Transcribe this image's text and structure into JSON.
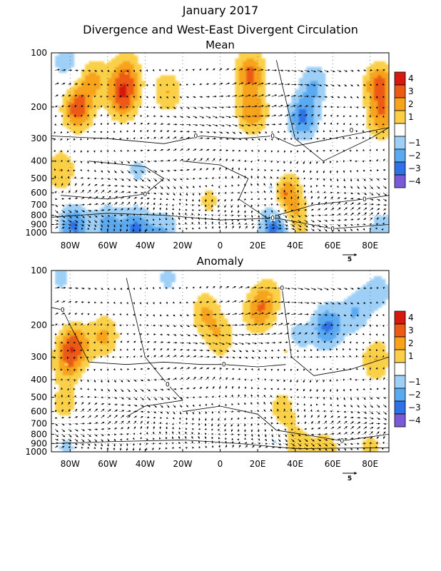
{
  "figure": {
    "title": "January 2017",
    "subtitle": "Divergence and West-East Divergent Circulation"
  },
  "colors": {
    "levels": [
      {
        "label": "4",
        "color": "#d7190f"
      },
      {
        "label": "3",
        "color": "#ec5a14"
      },
      {
        "label": "2",
        "color": "#f7a31c"
      },
      {
        "label": "1",
        "color": "#fbd048"
      },
      {
        "label": "",
        "color": "#ffffff"
      },
      {
        "label": "−1",
        "color": "#9ed0f7"
      },
      {
        "label": "−2",
        "color": "#5aaaf2"
      },
      {
        "label": "−3",
        "color": "#2f72e8"
      },
      {
        "label": "−4",
        "color": "#7a5ad8"
      }
    ]
  },
  "chart_data": [
    {
      "type": "heatmap",
      "panel": "mean",
      "title": "Mean",
      "x_range": [
        -90,
        90
      ],
      "x_ticks": [
        {
          "value": -80,
          "label": "80W"
        },
        {
          "value": -60,
          "label": "60W"
        },
        {
          "value": -40,
          "label": "40W"
        },
        {
          "value": -20,
          "label": "20W"
        },
        {
          "value": 0,
          "label": "0"
        },
        {
          "value": 20,
          "label": "20E"
        },
        {
          "value": 40,
          "label": "40E"
        },
        {
          "value": 60,
          "label": "60E"
        },
        {
          "value": 80,
          "label": "80E"
        }
      ],
      "y_range_hpa": [
        1000,
        100
      ],
      "y_ticks": [
        100,
        200,
        300,
        400,
        500,
        600,
        700,
        800,
        900,
        1000
      ],
      "legend_ticks": [
        "4",
        "3",
        "2",
        "1",
        "−1",
        "−2",
        "−3",
        "−4"
      ],
      "reference_vector": "5",
      "contour_labels": [
        {
          "text": "0",
          "lon": -13,
          "p": 290
        },
        {
          "text": "0",
          "lon": -40,
          "p": 610
        },
        {
          "text": "0",
          "lon": 28,
          "p": 290
        },
        {
          "text": "0",
          "lon": 70,
          "p": 270
        },
        {
          "text": "0",
          "lon": 28,
          "p": 830
        },
        {
          "text": "0",
          "lon": 77,
          "p": 650
        },
        {
          "text": "0",
          "lon": 60,
          "p": 950
        }
      ],
      "divergence_centers": [
        {
          "lon": -76,
          "p": 205,
          "value": 3.6
        },
        {
          "lon": -52,
          "p": 180,
          "value": 3.4
        },
        {
          "lon": -68,
          "p": 140,
          "value": 2.2
        },
        {
          "lon": -50,
          "p": 130,
          "value": 2.5
        },
        {
          "lon": -85,
          "p": 450,
          "value": 2.0
        },
        {
          "lon": -28,
          "p": 165,
          "value": 2.0
        },
        {
          "lon": 16,
          "p": 130,
          "value": 3.2
        },
        {
          "lon": 17,
          "p": 215,
          "value": 2.8
        },
        {
          "lon": 85,
          "p": 150,
          "value": 3.4
        },
        {
          "lon": 86,
          "p": 230,
          "value": 2.6
        },
        {
          "lon": 35,
          "p": 610,
          "value": 3.2
        },
        {
          "lon": 40,
          "p": 880,
          "value": 2.0
        },
        {
          "lon": -6,
          "p": 660,
          "value": 1.2
        },
        {
          "lon": 44,
          "p": 230,
          "value": -3.2
        },
        {
          "lon": 50,
          "p": 150,
          "value": -2.0
        },
        {
          "lon": -82,
          "p": 110,
          "value": -1.6
        },
        {
          "lon": -78,
          "p": 920,
          "value": -3.2
        },
        {
          "lon": -60,
          "p": 920,
          "value": -2.4
        },
        {
          "lon": -45,
          "p": 980,
          "value": -3.4
        },
        {
          "lon": -30,
          "p": 990,
          "value": -2.0
        },
        {
          "lon": 30,
          "p": 930,
          "value": -3.8
        },
        {
          "lon": -44,
          "p": 450,
          "value": -1.2
        },
        {
          "lon": 86,
          "p": 960,
          "value": -1.6
        },
        {
          "lon": 27,
          "p": 560,
          "value": -1.1
        }
      ]
    },
    {
      "type": "heatmap",
      "panel": "anomaly",
      "title": "Anomaly",
      "x_range": [
        -90,
        90
      ],
      "x_ticks": [
        {
          "value": -80,
          "label": "80W"
        },
        {
          "value": -60,
          "label": "60W"
        },
        {
          "value": -40,
          "label": "40W"
        },
        {
          "value": -20,
          "label": "20W"
        },
        {
          "value": 0,
          "label": "0"
        },
        {
          "value": 20,
          "label": "20E"
        },
        {
          "value": 40,
          "label": "40E"
        },
        {
          "value": 60,
          "label": "60E"
        },
        {
          "value": 80,
          "label": "80E"
        }
      ],
      "y_range_hpa": [
        1000,
        100
      ],
      "y_ticks": [
        100,
        200,
        300,
        400,
        500,
        600,
        700,
        800,
        900,
        1000
      ],
      "legend_ticks": [
        "4",
        "3",
        "2",
        "1",
        "−1",
        "−2",
        "−3",
        "−4"
      ],
      "reference_vector": "5",
      "contour_labels": [
        {
          "text": "0",
          "lon": -84,
          "p": 165
        },
        {
          "text": "0",
          "lon": 33,
          "p": 125
        },
        {
          "text": "0",
          "lon": 2,
          "p": 330
        },
        {
          "text": "0",
          "lon": -28,
          "p": 425
        },
        {
          "text": "0",
          "lon": 65,
          "p": 870
        }
      ],
      "divergence_centers": [
        {
          "lon": -78,
          "p": 260,
          "value": 3.2
        },
        {
          "lon": -62,
          "p": 230,
          "value": 2.2
        },
        {
          "lon": -82,
          "p": 330,
          "value": 1.8
        },
        {
          "lon": -83,
          "p": 560,
          "value": 1.4
        },
        {
          "lon": -8,
          "p": 170,
          "value": 2.0
        },
        {
          "lon": 20,
          "p": 170,
          "value": 2.4
        },
        {
          "lon": 0,
          "p": 235,
          "value": 1.8
        },
        {
          "lon": 26,
          "p": 140,
          "value": 1.6
        },
        {
          "lon": 35,
          "p": 280,
          "value": 1.4
        },
        {
          "lon": 83,
          "p": 310,
          "value": 2.0
        },
        {
          "lon": 33,
          "p": 590,
          "value": 1.6
        },
        {
          "lon": 40,
          "p": 950,
          "value": 2.0
        },
        {
          "lon": 56,
          "p": 980,
          "value": 1.6
        },
        {
          "lon": 80,
          "p": 975,
          "value": 1.4
        },
        {
          "lon": 57,
          "p": 205,
          "value": -3.2
        },
        {
          "lon": 72,
          "p": 170,
          "value": -2.0
        },
        {
          "lon": 84,
          "p": 130,
          "value": -1.6
        },
        {
          "lon": 40,
          "p": 240,
          "value": -1.8
        },
        {
          "lon": -85,
          "p": 110,
          "value": -1.2
        },
        {
          "lon": -28,
          "p": 110,
          "value": -1.2
        },
        {
          "lon": -82,
          "p": 940,
          "value": -1.2
        },
        {
          "lon": 29,
          "p": 880,
          "value": -1.1
        }
      ]
    }
  ]
}
